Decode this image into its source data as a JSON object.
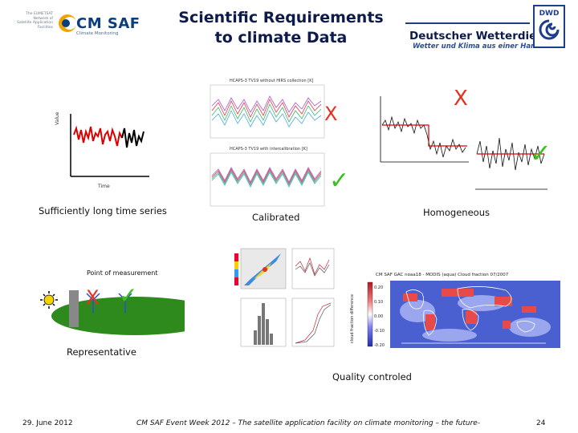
{
  "header": {
    "title_line1": "Scientific Requirements",
    "title_line2": "to climate Data",
    "cmsaf_small_lines": [
      "The EUMETSAT",
      "Network of",
      "Satellite Application",
      "Facilities"
    ],
    "cmsaf_name": "CM SAF",
    "cmsaf_sub": "Climate Monitoring",
    "dwd_name": "Deutscher Wetterdienst",
    "dwd_sub": "Wetter und Klima aus einer Hand",
    "dwd_logo_text": "DWD"
  },
  "panels": {
    "timeseries": {
      "ylabel": "Value",
      "xlabel": "Time",
      "caption": "Sufficiently long time series"
    },
    "calibrated": {
      "caption": "Calibrated",
      "top_title": "HCAPS-3 TV19 without HIRS collection [K]",
      "bottom_title": "HCAPS-3 TV19 with intercalibration [K]"
    },
    "homogeneous": {
      "caption": "Homogeneous"
    },
    "representative": {
      "point_label": "Point of measurement",
      "caption": "Representative"
    },
    "quality": {
      "caption": "Quality controled",
      "map_title": "CM SAF GAC noaa18 - MODIS (aqua) Cloud fraction 07/2007",
      "colorbar_label": "cloud fraction difference",
      "colorbar_ticks": [
        "0.20",
        "0.10",
        "0.00",
        "-0.10",
        "-0.20"
      ]
    }
  },
  "marks": {
    "cross": "X",
    "check": "✓"
  },
  "footer": {
    "date": "29. June 2012",
    "event": "CM SAF Event Week 2012 – The satellite application facility on climate monitoring – the future-",
    "page": "24"
  }
}
